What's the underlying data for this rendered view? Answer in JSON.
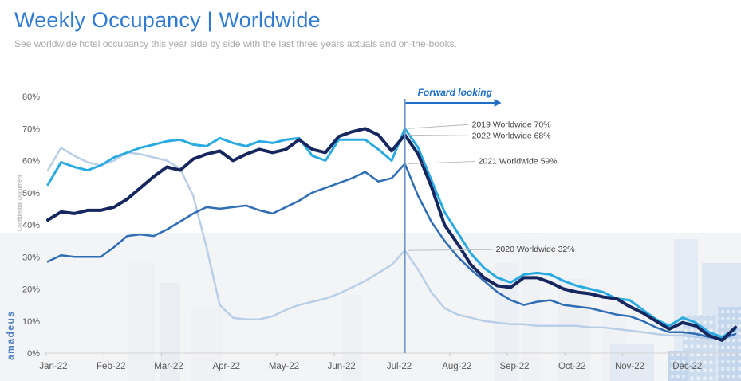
{
  "header": {
    "title": "Weekly Occupancy | Worldwide",
    "subtitle": "See worldwide hotel occupancy this year side by side with the last three years actuals and on-the-books."
  },
  "side_rail": {
    "confidential_label": "Confidential Document",
    "brand_logo": "amadeus"
  },
  "colors": {
    "title_blue": "#2f7bd3",
    "axis_text": "#595959",
    "annotation_text": "#404040",
    "leader_line": "#b8b8b8",
    "divider_blue": "#6b96cc",
    "forward_blue": "#1e6ec8",
    "series_2019": "#29abe2",
    "series_2020": "#b9cfe8",
    "series_2021": "#2f6db5",
    "series_2022": "#16265e"
  },
  "chart_data": {
    "type": "line",
    "x_unit": "week-of-year",
    "x_range": [
      1,
      53
    ],
    "ylim": [
      0,
      80
    ],
    "y_tick_step": 10,
    "y_tick_suffix": "%",
    "grid": false,
    "legend": "none",
    "x_tick_labels": [
      "Jan-22",
      "Feb-22",
      "Mar-22",
      "Apr-22",
      "May-22",
      "Jun-22",
      "Jul-22",
      "Aug-22",
      "Sep-22",
      "Oct-22",
      "Nov-22",
      "Dec-22"
    ],
    "series": [
      {
        "name": "2020",
        "color": "#b9cfe8",
        "width": 2.5,
        "values": [
          57,
          64,
          61.5,
          59.5,
          58.5,
          60,
          62.5,
          62,
          61,
          60,
          57.5,
          49,
          33,
          15,
          11,
          10.5,
          10.5,
          11.5,
          13.5,
          15,
          16,
          17,
          18.5,
          20.5,
          22.5,
          25,
          27.5,
          32,
          26,
          19,
          14,
          12,
          11,
          10,
          9.5,
          9,
          9,
          8.5,
          8.5,
          8.5,
          8.5,
          8,
          8,
          7.5,
          7,
          6.5,
          6,
          5.5,
          5.5,
          5,
          4.5,
          4.5,
          5.5
        ]
      },
      {
        "name": "2021",
        "color": "#2f6db5",
        "width": 2.5,
        "values": [
          28.5,
          30.5,
          30,
          30,
          30,
          33,
          36.5,
          37,
          36.5,
          38.5,
          41,
          43.5,
          45.5,
          45,
          45.5,
          46,
          44.5,
          43.5,
          45.5,
          47.5,
          50,
          51.5,
          53,
          54.5,
          56.5,
          53.5,
          54.5,
          59,
          49,
          41,
          35,
          30,
          26,
          22.5,
          19,
          16.5,
          15,
          16,
          16.5,
          15,
          14.5,
          14,
          13,
          12,
          11.5,
          10,
          8,
          6.5,
          6.5,
          6,
          5,
          4.5,
          6
        ]
      },
      {
        "name": "2019",
        "color": "#29abe2",
        "width": 3,
        "values": [
          52.5,
          59.5,
          58,
          57,
          58.5,
          61,
          62.5,
          64,
          65,
          66,
          66.5,
          65,
          64.5,
          67,
          65.5,
          64.5,
          66,
          65.5,
          66.5,
          67,
          61.5,
          60,
          66.5,
          66.5,
          66.5,
          63.5,
          60,
          70,
          64,
          54,
          44,
          37.5,
          31,
          26.5,
          23.5,
          22,
          24.5,
          25,
          24.5,
          22.5,
          21,
          20,
          19,
          17,
          16.5,
          13.5,
          10.5,
          8.5,
          11,
          9.5,
          6.5,
          5,
          7.5
        ]
      },
      {
        "name": "2022",
        "color": "#16265e",
        "width": 4,
        "values": [
          41.5,
          44,
          43.5,
          44.5,
          44.5,
          45.5,
          48,
          51.5,
          55,
          58,
          57,
          60.5,
          62,
          63,
          60,
          62,
          63.5,
          62.5,
          63.5,
          66.5,
          63.5,
          62.5,
          67.5,
          69,
          70,
          68,
          63,
          68,
          62,
          52,
          40,
          34,
          27.5,
          23.5,
          21,
          20.5,
          23.5,
          23.5,
          22,
          20,
          19,
          18.5,
          17.5,
          17,
          14.5,
          12.5,
          10,
          7.5,
          9.5,
          8.5,
          5.5,
          4,
          8
        ]
      }
    ],
    "divider": {
      "week": 28,
      "label": "Forward looking"
    },
    "annotations": [
      {
        "label": "2019 Worldwide 70%",
        "series": "2019",
        "week": 28,
        "value": 70
      },
      {
        "label": "2022 Worldwide 68%",
        "series": "2022",
        "week": 28,
        "value": 68
      },
      {
        "label": "2021 Worldwide 59%",
        "series": "2021",
        "week": 28,
        "value": 59
      },
      {
        "label": "2020 Worldwide 32%",
        "series": "2020",
        "week": 28,
        "value": 32
      }
    ]
  }
}
